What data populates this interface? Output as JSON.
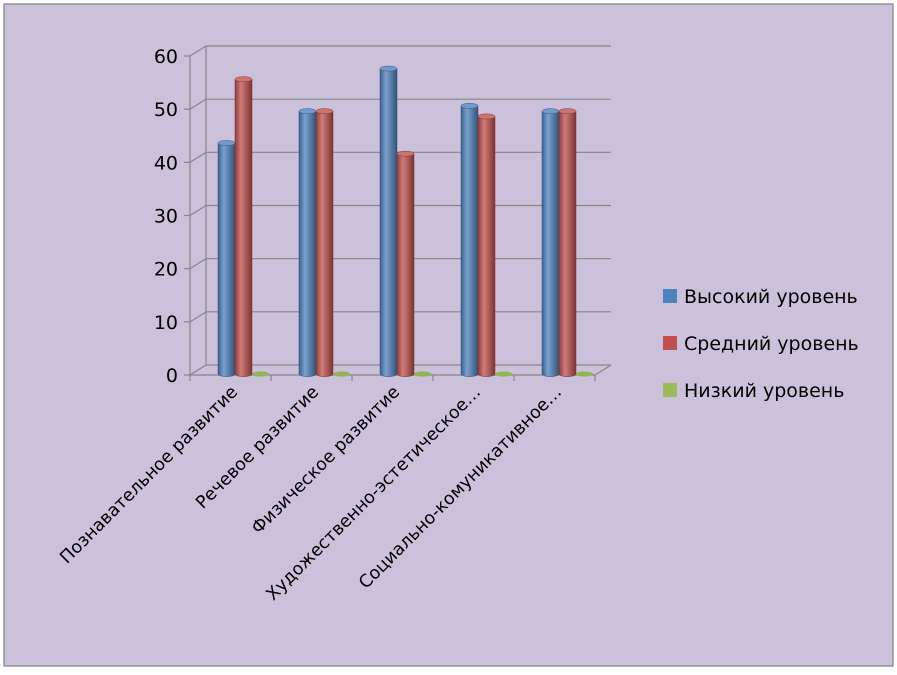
{
  "chart_data": {
    "type": "bar",
    "categories": [
      "Познавательное развитие",
      "Речевое развитие",
      "Физическое развитие",
      "Художественно-эстетическое…",
      "Социально-комуникативное…"
    ],
    "series": [
      {
        "name": "Высокий уровень",
        "values": [
          44,
          50,
          58,
          51,
          50
        ],
        "color": "#4F81BD"
      },
      {
        "name": "Средний уровень",
        "values": [
          56,
          50,
          42,
          49,
          50
        ],
        "color": "#C0504D"
      },
      {
        "name": "Низкий уровень",
        "values": [
          0,
          0,
          0,
          0,
          0
        ],
        "color": "#9BBB59"
      }
    ],
    "ylim": [
      0,
      60
    ],
    "yticks": [
      0,
      10,
      20,
      30,
      40,
      50,
      60
    ],
    "grid": true,
    "legend": "right",
    "style": {
      "background": "#CCC1DA",
      "border": "#7F7F7F",
      "gridline": "#868686"
    }
  }
}
